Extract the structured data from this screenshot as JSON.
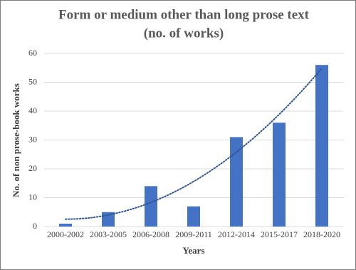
{
  "chart_data": {
    "type": "bar",
    "title": [
      "Form or medium other than long prose text",
      "(no. of works)"
    ],
    "x_label": "Years",
    "y_label": "No. of non prose-book works",
    "categories": [
      "2000-2002",
      "2003-2005",
      "2006-2008",
      "2009-2011",
      "2012-2014",
      "2015-2017",
      "2018-2020"
    ],
    "values": [
      1,
      5,
      14,
      7,
      31,
      36,
      56
    ],
    "color": "#4472c4",
    "ylim": [
      0,
      60
    ],
    "yticks": [
      0,
      10,
      20,
      30,
      40,
      50,
      60
    ],
    "grid": true,
    "trendline": {
      "kind": "polynomial",
      "order": 2,
      "color": "#2f5597",
      "style": "dotted"
    }
  }
}
